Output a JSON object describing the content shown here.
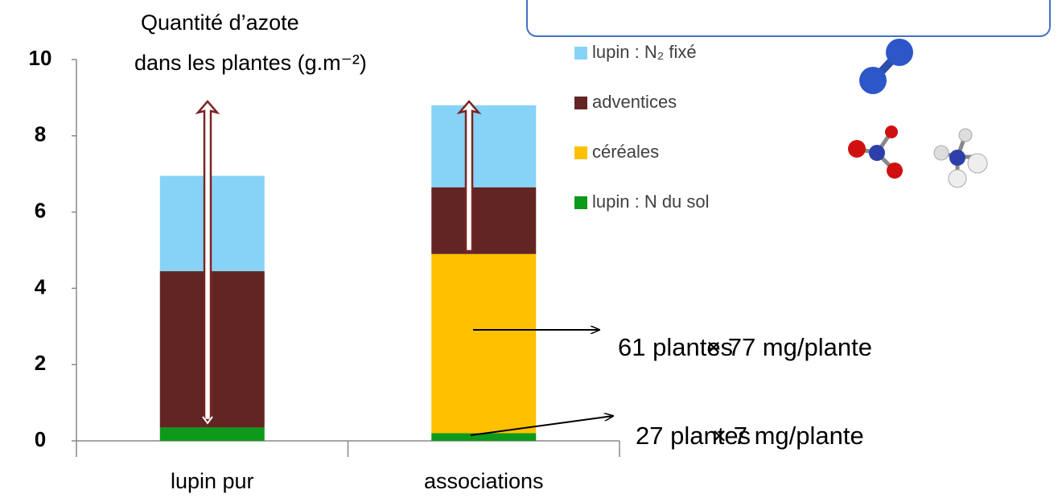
{
  "chart_data": {
    "type": "stacked_bar",
    "ylabel": [
      "Quantité d’azote",
      "dans les plantes (g.m⁻²)"
    ],
    "categories": [
      "lupin pur",
      "associations"
    ],
    "series": [
      {
        "name": "lupin : N du sol",
        "color": "#0d9a1a",
        "values": [
          0.35,
          0.2
        ]
      },
      {
        "name": "céréales",
        "color": "#ffc000",
        "values": [
          0,
          4.7
        ]
      },
      {
        "name": "adventices",
        "color": "#632523",
        "values": [
          4.1,
          1.75
        ]
      },
      {
        "name": "lupin : N₂ fixé",
        "color": "#87d3f8",
        "values": [
          2.5,
          2.15
        ]
      }
    ],
    "ylim": [
      0,
      10
    ],
    "yticks": [
      0,
      2,
      4,
      6,
      8,
      10
    ],
    "annotations": [
      "61 plantes",
      "× 77 mg/plante",
      "27 plantes",
      "× 7 mg/plante"
    ]
  }
}
